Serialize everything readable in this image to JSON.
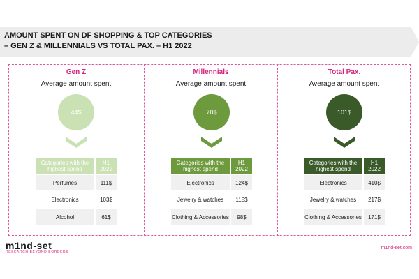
{
  "title": {
    "line1": "AMOUNT SPENT ON DF SHOPPING & TOP CATEGORIES",
    "line2": "– GEN Z  & MILLENNIALS VS TOTAL PAX. – H1 2022"
  },
  "colors": {
    "genz": "#c9e1b3",
    "millennials": "#6e9a3e",
    "total": "#3a5a2a",
    "accent": "#d4257f"
  },
  "chart_data": {
    "type": "table",
    "metric_label": "Average amount spent",
    "table_header": {
      "category": "Categories with the highest spend",
      "period": "H1 2022"
    },
    "segments": [
      {
        "name": "Gen Z",
        "avg_label": "Average amount spent",
        "avg_value": "44$",
        "avg": 44,
        "header_category": "Categories with the highest spend",
        "header_period": "H1 2022",
        "categories": [
          {
            "name": "Perfumes",
            "value": "111$",
            "amount": 111
          },
          {
            "name": "Electronics",
            "value": "103$",
            "amount": 103
          },
          {
            "name": "Alcohol",
            "value": "61$",
            "amount": 61
          }
        ]
      },
      {
        "name": "Millennials",
        "avg_label": "Average amount spent",
        "avg_value": "70$",
        "avg": 70,
        "header_category": "Categories with the highest spend",
        "header_period": "H1 2022",
        "categories": [
          {
            "name": "Electronics",
            "value": "124$",
            "amount": 124
          },
          {
            "name": "Jewelry & watches",
            "value": "118$",
            "amount": 118
          },
          {
            "name": "Clothing & Accessories",
            "value": "98$",
            "amount": 98
          }
        ]
      },
      {
        "name": "Total Pax.",
        "avg_label": "Average amount spent",
        "avg_value": "101$",
        "avg": 101,
        "header_category": "Categories with the highest spend",
        "header_period": "H1 2022",
        "categories": [
          {
            "name": "Electronics",
            "value": "410$",
            "amount": 410
          },
          {
            "name": "Jewelry & watches",
            "value": "217$",
            "amount": 217
          },
          {
            "name": "Clothing & Accessories",
            "value": "171$",
            "amount": 171
          }
        ]
      }
    ]
  },
  "footer": {
    "logo_text": "m1nd-set",
    "logo_tagline": "RESEARCH BEYOND BORDERS",
    "website": "m1nd-set.com"
  }
}
